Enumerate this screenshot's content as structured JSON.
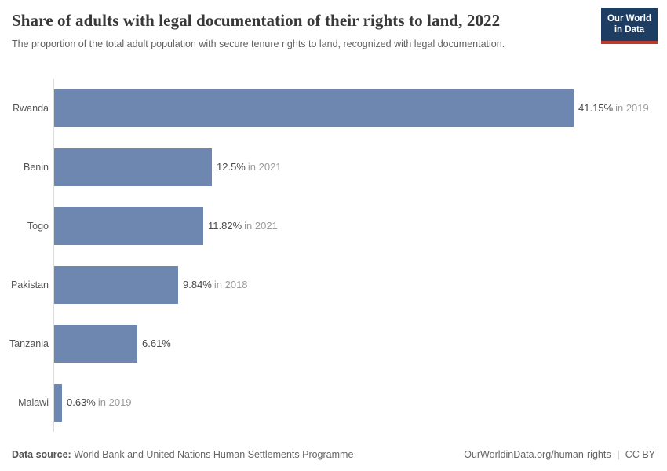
{
  "header": {
    "title": "Share of adults with legal documentation of their rights to land, 2022",
    "subtitle": "The proportion of the total adult population with secure tenure rights to land, recognized with legal documentation.",
    "logo": {
      "line1": "Our World",
      "line2": "in Data"
    }
  },
  "chart_data": {
    "type": "bar",
    "orientation": "horizontal",
    "title": "Share of adults with legal documentation of their rights to land, 2022",
    "categories": [
      "Rwanda",
      "Benin",
      "Togo",
      "Pakistan",
      "Tanzania",
      "Malawi"
    ],
    "values": [
      41.15,
      12.5,
      11.82,
      9.84,
      6.61,
      0.63
    ],
    "value_labels": [
      "41.15%",
      "12.5%",
      "11.82%",
      "9.84%",
      "6.61%",
      "0.63%"
    ],
    "year_labels": [
      "in 2019",
      "in 2021",
      "in 2021",
      "in 2018",
      "",
      "in 2019"
    ],
    "unit": "%",
    "xlabel": "",
    "ylabel": "",
    "xlim": [
      0,
      41.15
    ],
    "grid": false,
    "legend": "none"
  },
  "footer": {
    "datasource_label": "Data source:",
    "datasource_value": "World Bank and United Nations Human Settlements Programme",
    "url": "OurWorldinData.org/human-rights",
    "divider": "|",
    "license": "CC BY"
  },
  "colors": {
    "bar": "#6d87b1",
    "logo_bg": "#1d3d63",
    "logo_accent": "#c0392b",
    "axis_line": "#dcdcdc"
  }
}
